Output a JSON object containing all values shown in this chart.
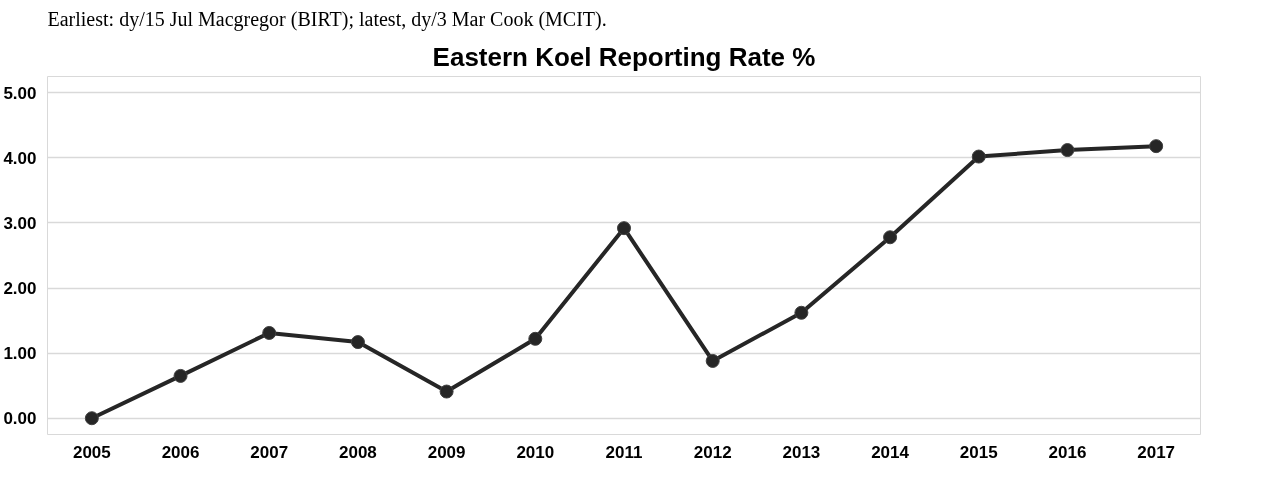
{
  "chart_data": {
    "type": "line",
    "title": "Eastern Koel Reporting Rate %",
    "annotations": [
      "Earliest: dy/15 Jul Macgregor (BIRT); latest, dy/3 Mar Cook (MCIT)."
    ],
    "categories": [
      "2005",
      "2006",
      "2007",
      "2008",
      "2009",
      "2010",
      "2011",
      "2012",
      "2013",
      "2014",
      "2015",
      "2016",
      "2017"
    ],
    "series": [
      {
        "color": "#262626",
        "values": [
          0.0,
          0.65,
          1.31,
          1.17,
          0.41,
          1.22,
          2.92,
          0.88,
          1.62,
          2.78,
          4.02,
          4.12,
          4.18
        ]
      }
    ],
    "ylim": [
      -0.25,
      5.25
    ],
    "yticks": [
      {
        "value": 0,
        "label": "0.00"
      },
      {
        "value": 1,
        "label": "1.00"
      },
      {
        "value": 2,
        "label": "2.00"
      },
      {
        "value": 3,
        "label": "3.00"
      },
      {
        "value": 4,
        "label": "4.00"
      },
      {
        "value": 5,
        "label": "5.00"
      }
    ],
    "grid": "y",
    "marker": "circle",
    "line_style": "solid"
  }
}
